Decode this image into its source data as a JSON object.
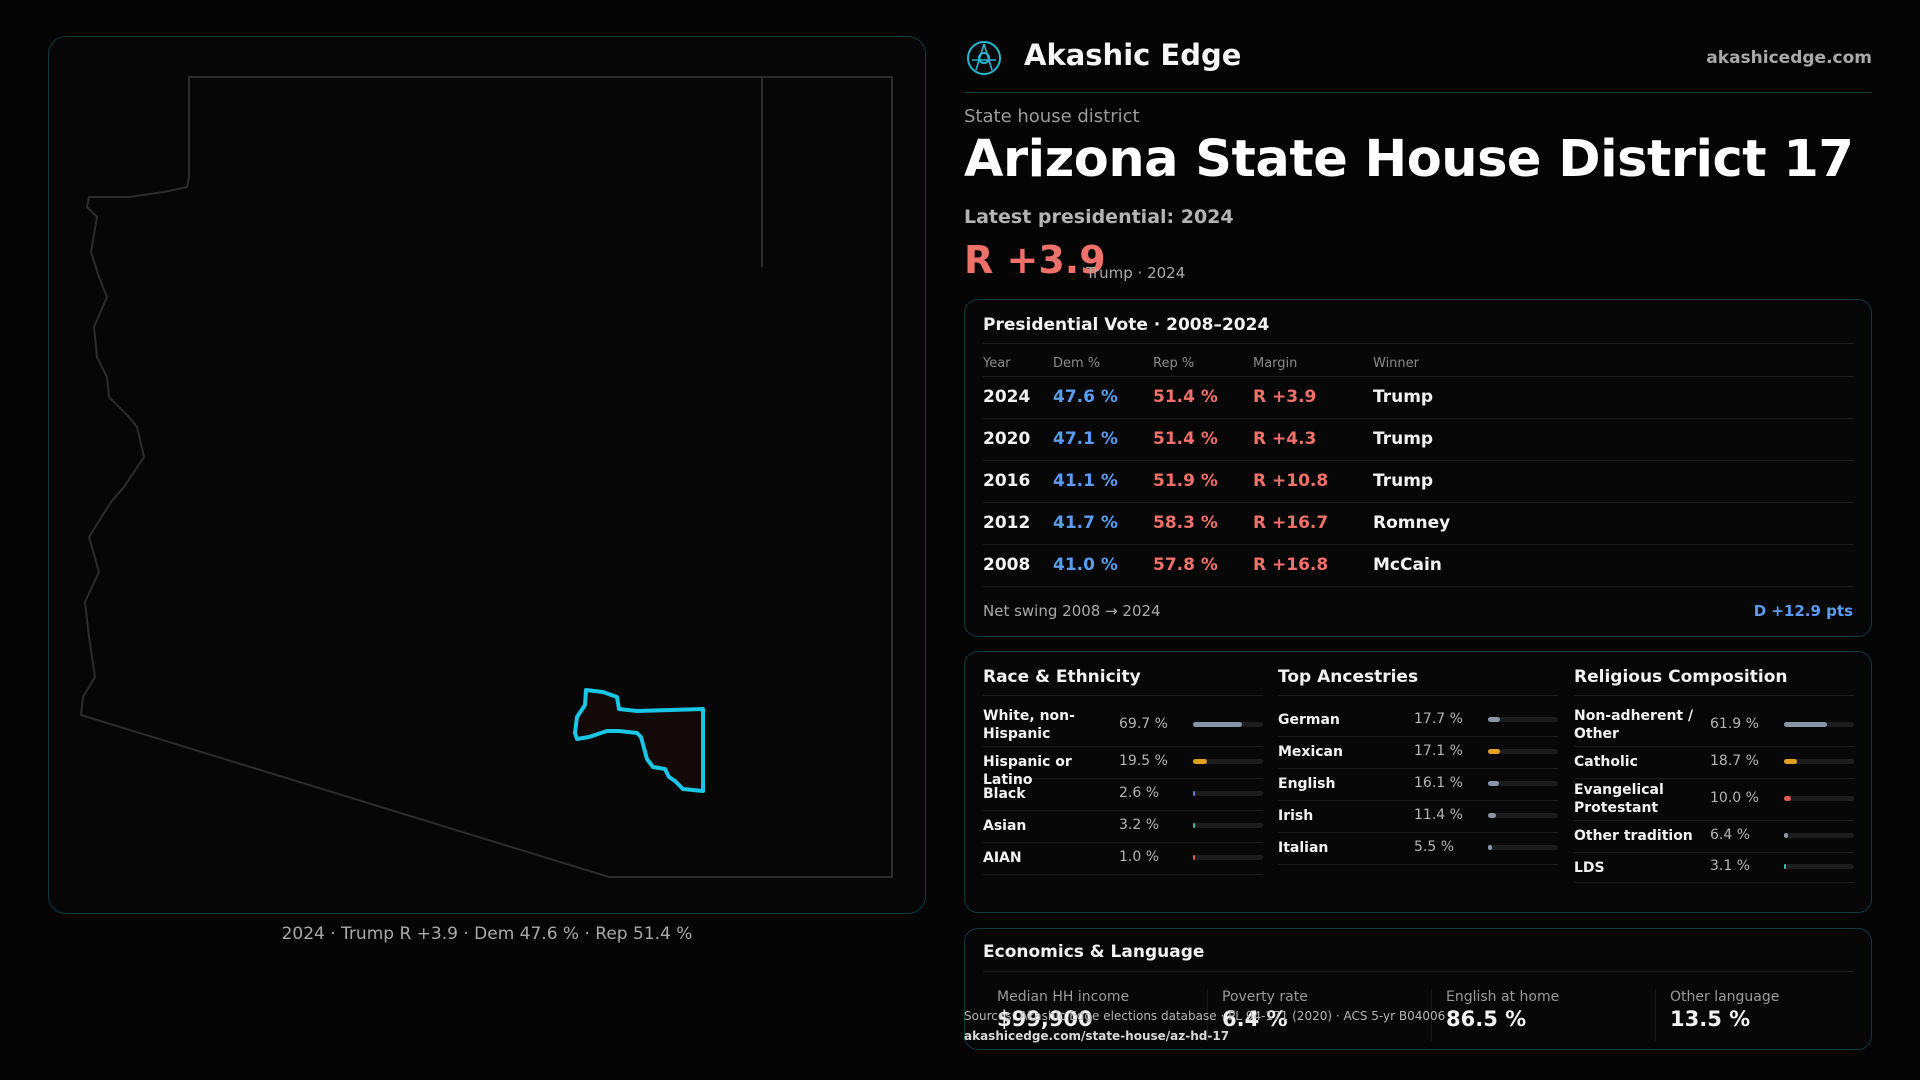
{
  "brand": {
    "name": "Akashic Edge",
    "url": "akashicedge.com",
    "logo_icon": "compass-logo-icon"
  },
  "header": {
    "kicker": "State house district",
    "title": "Arizona State House District 17",
    "latest_label": "Latest presidential: 2024",
    "margin": "R +3.9",
    "margin_sub": "Trump · 2024"
  },
  "map": {
    "caption": "2024 · Trump  R +3.9 · Dem 47.6 % · Rep 51.4 %",
    "district_color": "#19c6e6",
    "outline_color": "#2c2c2c"
  },
  "presidential": {
    "title": "Presidential Vote · 2008–2024",
    "columns": [
      "Year",
      "Dem %",
      "Rep %",
      "Margin",
      "Winner"
    ],
    "rows": [
      {
        "year": "2024",
        "dem": "47.6 %",
        "rep": "51.4 %",
        "margin": "R +3.9",
        "winner": "Trump"
      },
      {
        "year": "2020",
        "dem": "47.1 %",
        "rep": "51.4 %",
        "margin": "R +4.3",
        "winner": "Trump"
      },
      {
        "year": "2016",
        "dem": "41.1 %",
        "rep": "51.9 %",
        "margin": "R +10.8",
        "winner": "Trump"
      },
      {
        "year": "2012",
        "dem": "41.7 %",
        "rep": "58.3 %",
        "margin": "R +16.7",
        "winner": "Romney"
      },
      {
        "year": "2008",
        "dem": "41.0 %",
        "rep": "57.8 %",
        "margin": "R +16.8",
        "winner": "McCain"
      }
    ],
    "swing_label": "Net swing 2008 → 2024",
    "swing_value": "D +12.9 pts"
  },
  "race": {
    "title": "Race & Ethnicity",
    "items": [
      {
        "label": "White, non-Hispanic",
        "value": "69.7 %",
        "fraction": 0.697,
        "color": "#8a96a6"
      },
      {
        "label": "Hispanic or Latino",
        "value": "19.5 %",
        "fraction": 0.195,
        "color": "#e0a020"
      },
      {
        "label": "Black",
        "value": "2.6 %",
        "fraction": 0.026,
        "color": "#6a78e0"
      },
      {
        "label": "Asian",
        "value": "3.2 %",
        "fraction": 0.032,
        "color": "#2ec4a0"
      },
      {
        "label": "AIAN",
        "value": "1.0 %",
        "fraction": 0.01,
        "color": "#e0603a"
      }
    ]
  },
  "ancestry": {
    "title": "Top Ancestries",
    "items": [
      {
        "label": "German",
        "value": "17.7 %",
        "fraction": 0.177,
        "color": "#8a96a6"
      },
      {
        "label": "Mexican",
        "value": "17.1 %",
        "fraction": 0.171,
        "color": "#e0a020"
      },
      {
        "label": "English",
        "value": "16.1 %",
        "fraction": 0.161,
        "color": "#8a96a6"
      },
      {
        "label": "Irish",
        "value": "11.4 %",
        "fraction": 0.114,
        "color": "#8a96a6"
      },
      {
        "label": "Italian",
        "value": "5.5 %",
        "fraction": 0.055,
        "color": "#8a96a6"
      }
    ]
  },
  "religion": {
    "title": "Religious Composition",
    "items": [
      {
        "label": "Non-adherent / Other",
        "value": "61.9 %",
        "fraction": 0.619,
        "color": "#8a96a6"
      },
      {
        "label": "Catholic",
        "value": "18.7 %",
        "fraction": 0.187,
        "color": "#e0a020"
      },
      {
        "label": "Evangelical Protestant",
        "value": "10.0 %",
        "fraction": 0.1,
        "color": "#e05a5a"
      },
      {
        "label": "Other tradition",
        "value": "6.4 %",
        "fraction": 0.064,
        "color": "#8a96a6"
      },
      {
        "label": "LDS",
        "value": "3.1 %",
        "fraction": 0.031,
        "color": "#2ec4a0"
      }
    ]
  },
  "economics": {
    "title": "Economics & Language",
    "items": [
      {
        "label": "Median HH income",
        "value": "$99,900"
      },
      {
        "label": "Poverty rate",
        "value": "6.4 %"
      },
      {
        "label": "English at home",
        "value": "86.5 %"
      },
      {
        "label": "Other language",
        "value": "13.5 %"
      }
    ]
  },
  "footer": {
    "sources": "Sources: Akashic Edge elections database · PL 94-171 (2020) · ACS 5-yr B04006",
    "permalink": "akashicedge.com/state-house/az-hd-17"
  }
}
